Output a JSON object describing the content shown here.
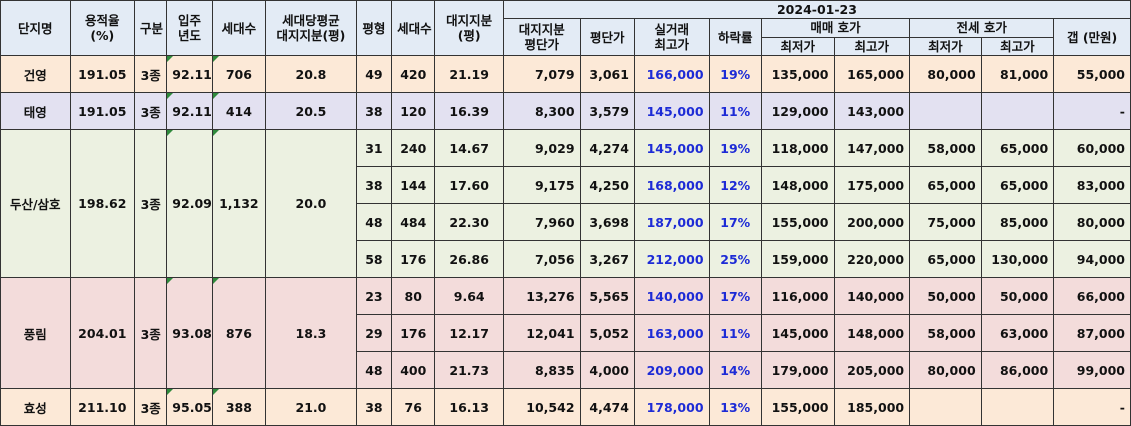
{
  "headers": {
    "name": "단지명",
    "far": "용적율\n(%)",
    "zone": "구분",
    "year": "입주\n년도",
    "households": "세대수",
    "avg_land_share": "세대당평균\n대지지분(평)",
    "pyeong": "평형",
    "unit_households": "세대수",
    "land_share": "대지지분\n(평)",
    "date": "2024-01-23",
    "land_price_per": "대지지분\n평단가",
    "price_per_pyeong": "평단가",
    "actual_max": "실거래\n최고가",
    "decline": "하락률",
    "sale_quote": "매매 호가",
    "jeonse_quote": "전세 호가",
    "min": "최저가",
    "max": "최고가",
    "min2": "최저가",
    "max2": "최고가",
    "gap": "갭 (만원)"
  },
  "complexes": [
    {
      "name": "건영",
      "far": "191.05",
      "zone": "3종",
      "year": "92.11",
      "households": "706",
      "avg_land_share": "20.8",
      "rows": [
        {
          "pyeong": "49",
          "hh": "420",
          "land": "21.19",
          "land_ppp": "7,079",
          "ppp": "3,061",
          "actual": "166,000",
          "decline": "19%",
          "sale_min": "135,000",
          "sale_max": "165,000",
          "jeon_min": "80,000",
          "jeon_max": "81,000",
          "gap": "55,000"
        }
      ]
    },
    {
      "name": "태영",
      "far": "191.05",
      "zone": "3종",
      "year": "92.11",
      "households": "414",
      "avg_land_share": "20.5",
      "rows": [
        {
          "pyeong": "38",
          "hh": "120",
          "land": "16.39",
          "land_ppp": "8,300",
          "ppp": "3,579",
          "actual": "145,000",
          "decline": "11%",
          "sale_min": "129,000",
          "sale_max": "143,000",
          "jeon_min": "",
          "jeon_max": "",
          "gap": "-"
        }
      ]
    },
    {
      "name": "두산/삼호",
      "far": "198.62",
      "zone": "3종",
      "year": "92.09",
      "households": "1,132",
      "avg_land_share": "20.0",
      "rows": [
        {
          "pyeong": "31",
          "hh": "240",
          "land": "14.67",
          "land_ppp": "9,029",
          "ppp": "4,274",
          "actual": "145,000",
          "decline": "19%",
          "sale_min": "118,000",
          "sale_max": "147,000",
          "jeon_min": "58,000",
          "jeon_max": "65,000",
          "gap": "60,000"
        },
        {
          "pyeong": "38",
          "hh": "144",
          "land": "17.60",
          "land_ppp": "9,175",
          "ppp": "4,250",
          "actual": "168,000",
          "decline": "12%",
          "sale_min": "148,000",
          "sale_max": "175,000",
          "jeon_min": "65,000",
          "jeon_max": "65,000",
          "gap": "83,000"
        },
        {
          "pyeong": "48",
          "hh": "484",
          "land": "22.30",
          "land_ppp": "7,960",
          "ppp": "3,698",
          "actual": "187,000",
          "decline": "17%",
          "sale_min": "155,000",
          "sale_max": "200,000",
          "jeon_min": "75,000",
          "jeon_max": "85,000",
          "gap": "80,000"
        },
        {
          "pyeong": "58",
          "hh": "176",
          "land": "26.86",
          "land_ppp": "7,056",
          "ppp": "3,267",
          "actual": "212,000",
          "decline": "25%",
          "sale_min": "159,000",
          "sale_max": "220,000",
          "jeon_min": "65,000",
          "jeon_max": "130,000",
          "gap": "94,000"
        }
      ]
    },
    {
      "name": "풍림",
      "far": "204.01",
      "zone": "3종",
      "year": "93.08",
      "households": "876",
      "avg_land_share": "18.3",
      "rows": [
        {
          "pyeong": "23",
          "hh": "80",
          "land": "9.64",
          "land_ppp": "13,276",
          "ppp": "5,565",
          "actual": "140,000",
          "decline": "17%",
          "sale_min": "116,000",
          "sale_max": "140,000",
          "jeon_min": "50,000",
          "jeon_max": "50,000",
          "gap": "66,000"
        },
        {
          "pyeong": "29",
          "hh": "176",
          "land": "12.17",
          "land_ppp": "12,041",
          "ppp": "5,052",
          "actual": "163,000",
          "decline": "11%",
          "sale_min": "145,000",
          "sale_max": "148,000",
          "jeon_min": "58,000",
          "jeon_max": "63,000",
          "gap": "87,000"
        },
        {
          "pyeong": "48",
          "hh": "400",
          "land": "21.73",
          "land_ppp": "8,835",
          "ppp": "4,000",
          "actual": "209,000",
          "decline": "14%",
          "sale_min": "179,000",
          "sale_max": "205,000",
          "jeon_min": "80,000",
          "jeon_max": "86,000",
          "gap": "99,000"
        }
      ]
    },
    {
      "name": "효성",
      "far": "211.10",
      "zone": "3종",
      "year": "95.05",
      "households": "388",
      "avg_land_share": "21.0",
      "rows": [
        {
          "pyeong": "38",
          "hh": "76",
          "land": "16.13",
          "land_ppp": "10,542",
          "ppp": "4,474",
          "actual": "178,000",
          "decline": "13%",
          "sale_min": "155,000",
          "sale_max": "185,000",
          "jeon_min": "",
          "jeon_max": "",
          "gap": "-"
        }
      ]
    }
  ]
}
